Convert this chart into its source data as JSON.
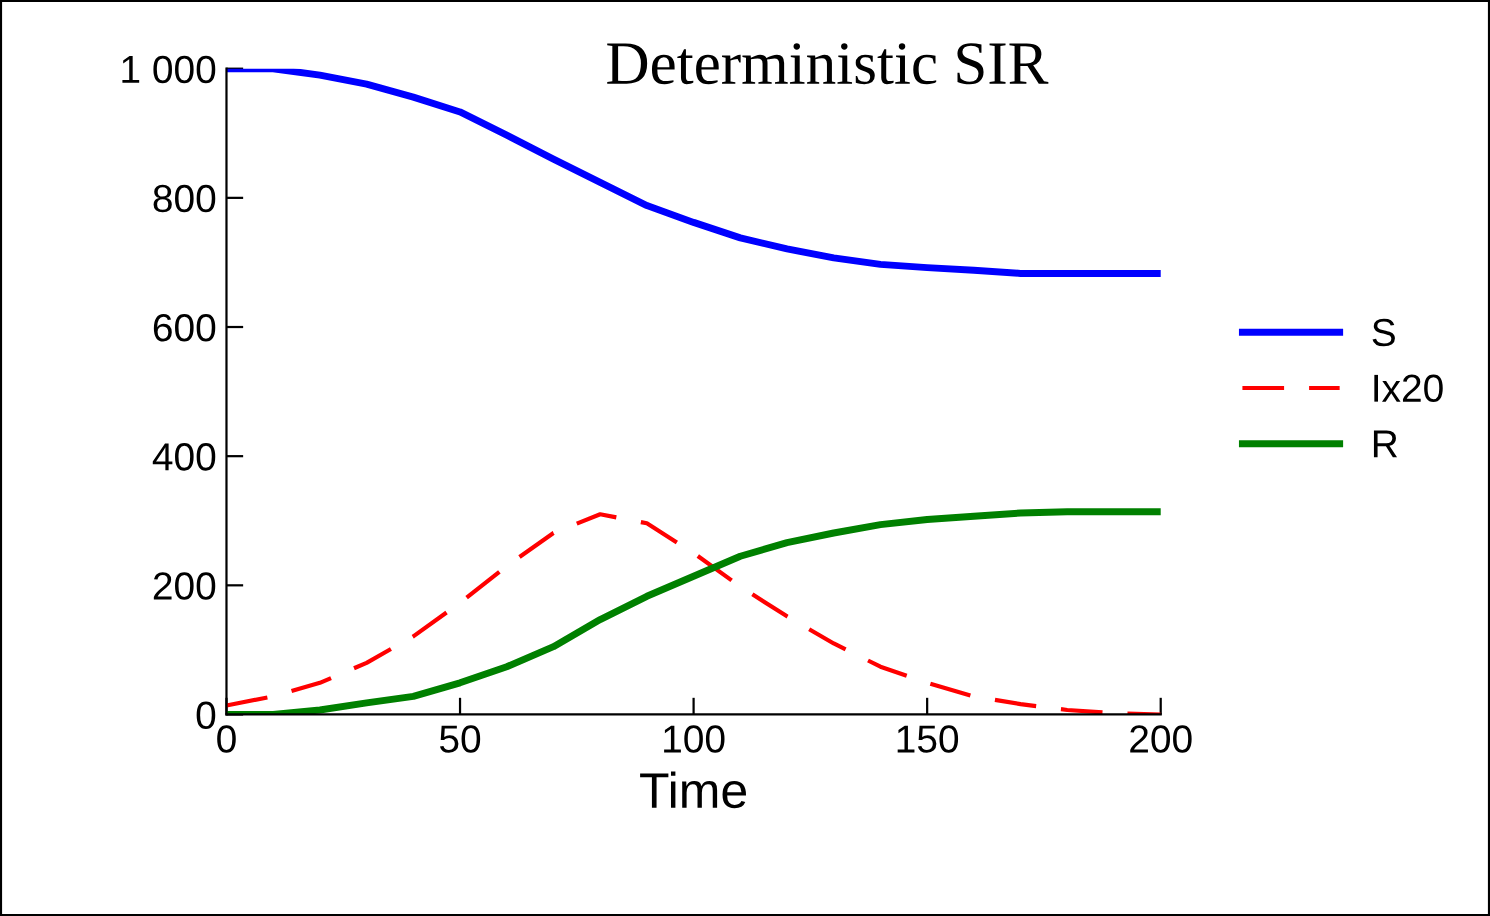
{
  "chart_data": {
    "type": "line",
    "title": "Deterministic SIR",
    "xlabel": "Time",
    "x": [
      0,
      10,
      20,
      30,
      40,
      50,
      60,
      70,
      80,
      90,
      100,
      110,
      120,
      130,
      140,
      150,
      160,
      170,
      180,
      190,
      200
    ],
    "series": [
      {
        "name": "S",
        "color": "#0000ff",
        "line_style": "solid",
        "values": [
          1000,
          1000,
          990,
          976,
          956,
          933,
          897,
          860,
          824,
          788,
          762,
          738,
          721,
          707,
          697,
          692,
          688,
          683,
          683,
          683,
          683
        ]
      },
      {
        "name": "Ix20",
        "color": "#ff0000",
        "line_style": "dashed",
        "values": [
          14,
          28,
          49,
          80,
          121,
          173,
          230,
          281,
          310,
          296,
          250,
          198,
          152,
          110,
          74,
          49,
          28,
          16,
          7,
          2,
          0
        ]
      },
      {
        "name": "R",
        "color": "#008000",
        "line_style": "solid",
        "values": [
          0,
          0,
          7,
          18,
          28,
          49,
          74,
          105,
          147,
          183,
          214,
          245,
          266,
          281,
          294,
          302,
          307,
          312,
          314,
          314,
          314
        ]
      }
    ],
    "xlim": [
      0,
      200
    ],
    "xticks": [
      0,
      50,
      100,
      150,
      200
    ],
    "ylim": [
      0,
      1000
    ],
    "yticks": [
      0,
      200,
      400,
      600,
      800,
      {
        "value": 1000,
        "label": "1 000"
      }
    ],
    "grid": false,
    "legend": "right",
    "marker": "none"
  }
}
